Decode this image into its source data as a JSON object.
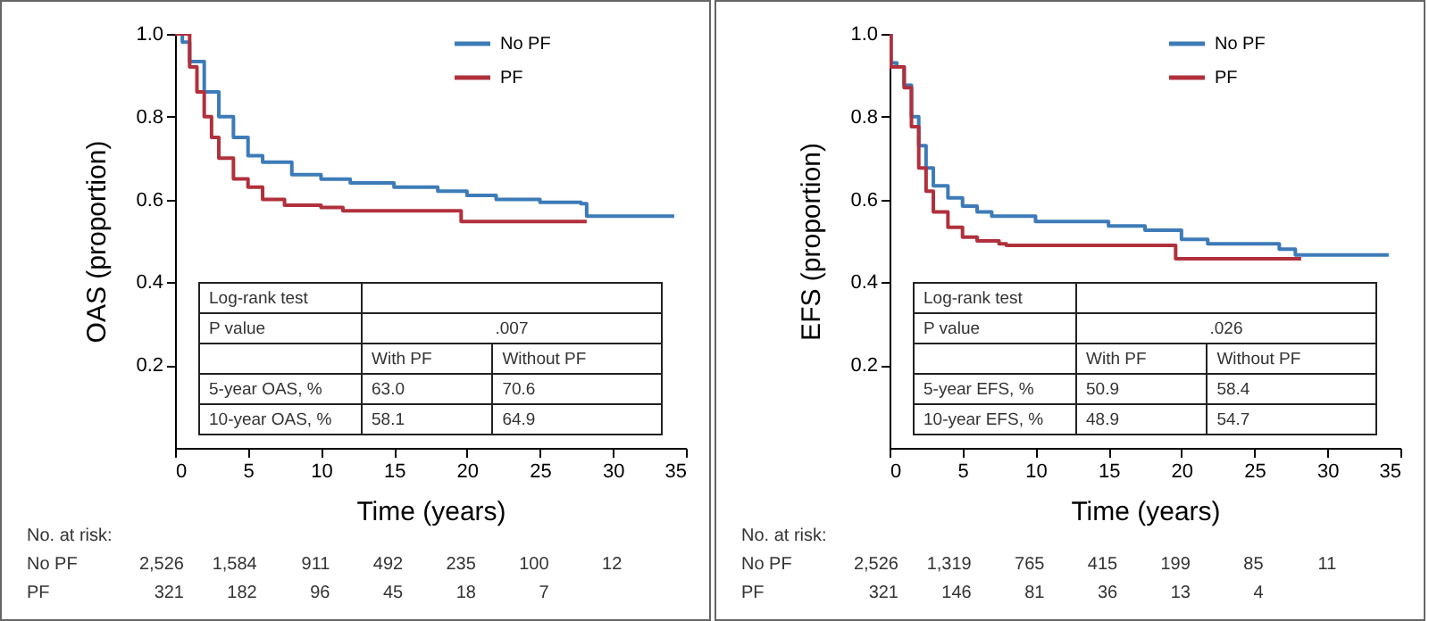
{
  "chart_data": [
    {
      "type": "step",
      "xlabel": "Time (years)",
      "ylabel": "OAS (proportion)",
      "xlim": [
        0,
        35
      ],
      "xticks": [
        0,
        5,
        10,
        15,
        20,
        25,
        30,
        35
      ],
      "ylim": [
        0,
        1
      ],
      "yticks": [
        0.2,
        0.4,
        0.6,
        0.8,
        {
          "value": 1,
          "label": "1.0"
        }
      ],
      "legend": "top right",
      "series": [
        {
          "name": "No PF",
          "color": "#3d7bb8",
          "x": [
            0,
            0.5,
            1,
            2,
            3,
            4,
            5,
            6,
            8,
            10,
            12,
            15,
            18,
            20,
            22,
            25,
            27.8,
            28.2,
            34.2
          ],
          "values": [
            1.0,
            0.98,
            0.933,
            0.86,
            0.8,
            0.75,
            0.706,
            0.69,
            0.66,
            0.649,
            0.64,
            0.63,
            0.62,
            0.61,
            0.6,
            0.593,
            0.59,
            0.56,
            0.56
          ]
        },
        {
          "name": "PF",
          "color": "#b0303c",
          "x": [
            0,
            1,
            1.5,
            2,
            2.5,
            3,
            4,
            5,
            6,
            7.5,
            10,
            11.5,
            19.6,
            28.2
          ],
          "values": [
            1.0,
            0.92,
            0.86,
            0.8,
            0.75,
            0.7,
            0.65,
            0.63,
            0.6,
            0.586,
            0.581,
            0.573,
            0.547,
            0.547
          ]
        }
      ],
      "annotations": [
        "Log-rank test",
        "P value",
        ".007",
        "With PF",
        "Without PF",
        "5-year OAS, %",
        "63.0",
        "70.6",
        "10-year OAS, %",
        "58.1",
        "64.9",
        "No. at risk:",
        "No PF",
        "2,526",
        "1,584",
        "911",
        "492",
        "235",
        "100",
        "12",
        "PF",
        "321",
        "182",
        "96",
        "45",
        "18",
        "7"
      ]
    },
    {
      "type": "step",
      "xlabel": "Time (years)",
      "ylabel": "EFS (proportion)",
      "xlim": [
        0,
        35
      ],
      "xticks": [
        0,
        5,
        10,
        15,
        20,
        25,
        30,
        35
      ],
      "ylim": [
        0,
        1
      ],
      "yticks": [
        0.2,
        0.4,
        0.6,
        0.8,
        {
          "value": 1,
          "label": "1.0"
        }
      ],
      "legend": "top right",
      "series": [
        {
          "name": "No PF",
          "color": "#3d7bb8",
          "x": [
            0,
            0.1,
            0.5,
            1,
            1.5,
            2,
            2.5,
            3,
            4,
            5,
            6,
            7,
            10,
            15,
            17.5,
            20,
            21.8,
            26.7,
            27.8,
            34.2
          ],
          "values": [
            1.0,
            0.93,
            0.92,
            0.876,
            0.8,
            0.73,
            0.676,
            0.633,
            0.604,
            0.584,
            0.57,
            0.56,
            0.547,
            0.536,
            0.526,
            0.504,
            0.493,
            0.48,
            0.466,
            0.466
          ]
        },
        {
          "name": "PF",
          "color": "#b0303c",
          "x": [
            0,
            0.1,
            1,
            1.5,
            2,
            2.5,
            3,
            4,
            5,
            6,
            7.5,
            8,
            19.6,
            28.2
          ],
          "values": [
            1.0,
            0.92,
            0.87,
            0.776,
            0.676,
            0.62,
            0.57,
            0.533,
            0.509,
            0.5,
            0.493,
            0.489,
            0.457,
            0.457
          ]
        }
      ],
      "annotations": [
        "Log-rank test",
        "P value",
        ".026",
        "With PF",
        "Without PF",
        "5-year EFS, %",
        "50.9",
        "58.4",
        "10-year EFS, %",
        "48.9",
        "54.7",
        "No. at risk:",
        "No PF",
        "2,526",
        "1,319",
        "765",
        "415",
        "199",
        "85",
        "11",
        "PF",
        "321",
        "146",
        "81",
        "36",
        "13",
        "4"
      ]
    }
  ]
}
